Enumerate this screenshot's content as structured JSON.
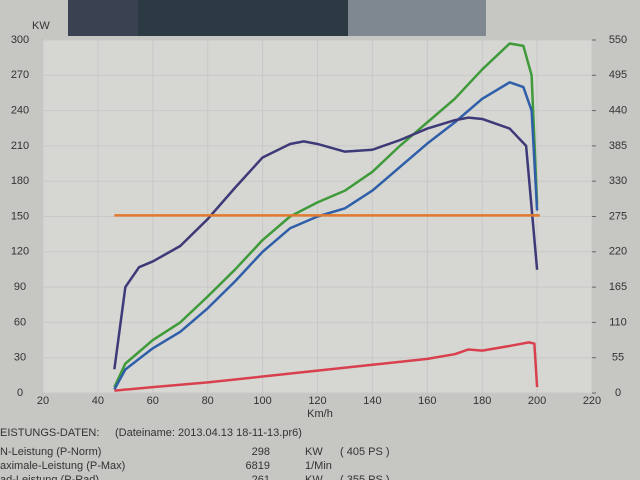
{
  "chart_data": {
    "type": "line",
    "ylabel": "KW",
    "xlabel": "Km/h",
    "xlim": [
      20,
      220
    ],
    "xticks": [
      20,
      40,
      60,
      80,
      100,
      120,
      140,
      160,
      180,
      200,
      220
    ],
    "ylim": [
      0,
      300
    ],
    "yticks": [
      0,
      30,
      60,
      90,
      120,
      150,
      180,
      210,
      240,
      270,
      300
    ],
    "y2lim": [
      0,
      550
    ],
    "y2ticks": [
      0,
      55,
      110,
      165,
      220,
      275,
      330,
      385,
      440,
      495,
      550
    ],
    "grid": true,
    "series": [
      {
        "color": "#3f9a3a",
        "x": [
          46,
          50,
          60,
          70,
          80,
          90,
          100,
          110,
          120,
          130,
          140,
          150,
          160,
          170,
          180,
          190,
          195,
          198,
          200
        ],
        "values": [
          5,
          25,
          45,
          60,
          82,
          105,
          130,
          150,
          162,
          172,
          188,
          210,
          230,
          250,
          275,
          297,
          295,
          270,
          160
        ]
      },
      {
        "color": "#2f5fa8",
        "x": [
          46,
          50,
          60,
          70,
          80,
          90,
          100,
          110,
          120,
          130,
          140,
          150,
          160,
          170,
          180,
          190,
          195,
          198,
          200
        ],
        "values": [
          3,
          20,
          38,
          52,
          72,
          95,
          120,
          140,
          150,
          157,
          172,
          192,
          212,
          230,
          250,
          264,
          260,
          240,
          155
        ]
      },
      {
        "color": "#3e3a78",
        "axis": "y2",
        "x": [
          46,
          50,
          55,
          60,
          70,
          80,
          90,
          100,
          110,
          115,
          120,
          130,
          140,
          150,
          160,
          170,
          175,
          180,
          190,
          196,
          200
        ],
        "values": [
          37,
          165,
          196,
          205,
          229,
          271,
          320,
          367,
          388,
          392,
          388,
          376,
          379,
          394,
          412,
          425,
          429,
          427,
          412,
          385,
          192
        ]
      },
      {
        "color": "#d9404e",
        "x": [
          46,
          60,
          80,
          100,
          120,
          140,
          160,
          170,
          175,
          180,
          190,
          197,
          199,
          200
        ],
        "values": [
          2,
          5,
          9,
          14,
          19,
          24,
          29,
          33,
          37,
          36,
          40,
          43,
          42,
          5
        ]
      },
      {
        "color": "#e07a2c",
        "x": [
          46,
          201
        ],
        "values": [
          151,
          151
        ]
      }
    ]
  },
  "info": {
    "heading": "EISTUNGS-DATEN:",
    "filename": "(Dateiname: 2013.04.13 18-11-13.pr6)",
    "rows": [
      {
        "label": "N-Leistung (P-Norm)",
        "value": "298",
        "unit": "KW",
        "extra": "( 405 PS )"
      },
      {
        "label": "aximale-Leistung (P-Max)",
        "value": "6819",
        "unit": "1/Min",
        "extra": ""
      },
      {
        "label": "ad-Leistung (P-Rad)",
        "value": "261",
        "unit": "KW",
        "extra": "( 355 PS )"
      }
    ]
  }
}
